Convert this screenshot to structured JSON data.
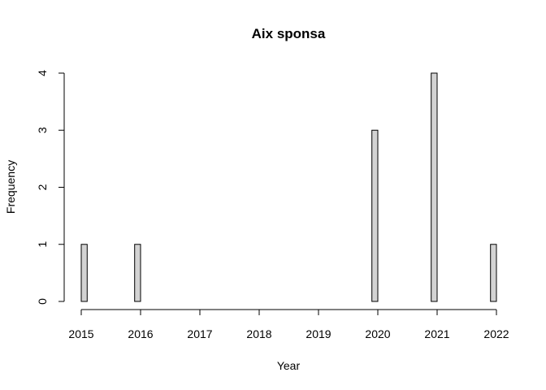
{
  "chart_data": {
    "type": "bar",
    "subtype": "histogram",
    "title": "Aix sponsa",
    "xlabel": "Year",
    "ylabel": "Frequency",
    "xlim": [
      2015,
      2022
    ],
    "ylim": [
      0,
      4
    ],
    "x_ticks": [
      "2015",
      "2016",
      "2017",
      "2018",
      "2019",
      "2020",
      "2021",
      "2022"
    ],
    "y_ticks": [
      "0",
      "1",
      "2",
      "3",
      "4"
    ],
    "bin_width": 0.1,
    "bins": [
      {
        "start": 2015.0,
        "end": 2015.1,
        "count": 1
      },
      {
        "start": 2015.9,
        "end": 2016.0,
        "count": 1
      },
      {
        "start": 2019.9,
        "end": 2020.0,
        "count": 3
      },
      {
        "start": 2020.9,
        "end": 2021.0,
        "count": 4
      },
      {
        "start": 2021.9,
        "end": 2022.0,
        "count": 1
      }
    ],
    "bar_fill": "#d3d3d3",
    "bar_stroke": "#000000",
    "grid": false,
    "legend": "none"
  }
}
